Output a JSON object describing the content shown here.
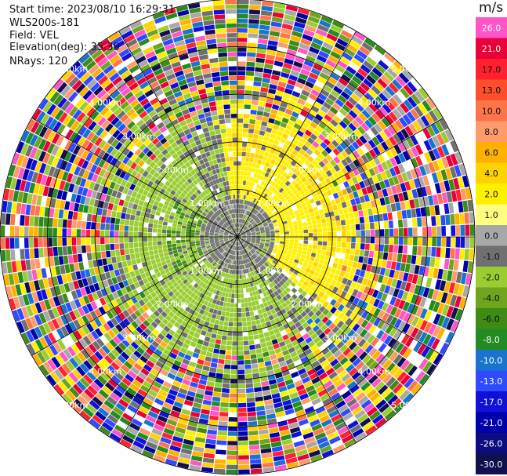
{
  "header": {
    "start_time": "Start time: 2023/08/10 16:29:31",
    "instrument": "WLS200s-181",
    "field": "Field: VEL",
    "elevation": "Elevation(deg): 35.30",
    "nrays": "NRays: 120"
  },
  "colorbar": {
    "title": "m/s",
    "ticks": [
      "26.0",
      "21.0",
      "17.0",
      "13.0",
      "10.0",
      "8.0",
      "6.0",
      "4.0",
      "2.0",
      "1.0",
      "0.0",
      "-1.0",
      "-2.0",
      "-4.0",
      "-6.0",
      "-8.0",
      "-10.0",
      "-13.0",
      "-17.0",
      "-21.0",
      "-26.0",
      "-30.0"
    ],
    "colors": [
      "#ff55c8",
      "#e8003a",
      "#ff2030",
      "#ff4e2a",
      "#ff7448",
      "#ff9a6a",
      "#ffb000",
      "#ffd200",
      "#fff000",
      "#ffff80",
      "#a8a8a8",
      "#707070",
      "#9acd32",
      "#6fa41e",
      "#3e8b16",
      "#228b22",
      "#1874cd",
      "#2e4bff",
      "#1010d8",
      "#0000aa",
      "#0c0c80",
      "#101050"
    ]
  },
  "chart_data": {
    "type": "ppi",
    "field": "VEL",
    "units": "m/s",
    "nrays": 120,
    "elevation_deg": 35.3,
    "range_rings_km": [
      1.0,
      2.0,
      3.0,
      4.0,
      5.0
    ],
    "ring_labels": [
      "1.00km",
      "2.00km",
      "3.00km",
      "4.00km",
      "5.00km"
    ],
    "max_range_km": 5.0,
    "spoke_directions_deg": [
      0,
      30,
      60,
      90,
      120,
      150,
      180,
      210,
      240,
      270,
      300,
      330
    ],
    "velocity_pattern": {
      "inner_region_km": 2.3,
      "yellow_sector_deg": [
        350,
        130
      ],
      "green_sector_deg": [
        150,
        330
      ],
      "gray_center_km": 0.8
    }
  }
}
